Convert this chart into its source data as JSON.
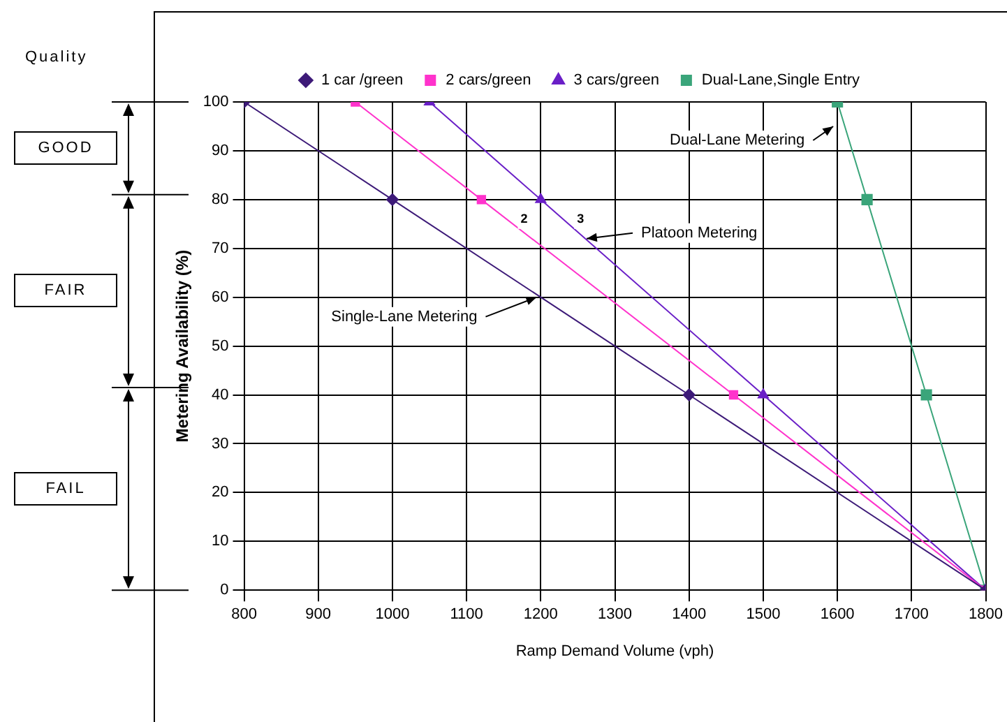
{
  "chart_data": {
    "type": "line",
    "xlabel": "Ramp Demand Volume (vph)",
    "ylabel": "Metering Availability (%)",
    "xlim": [
      800,
      1800
    ],
    "xticks": [
      800,
      900,
      1000,
      1100,
      1200,
      1300,
      1400,
      1500,
      1600,
      1700,
      1800
    ],
    "ylim": [
      0,
      100
    ],
    "yticks": [
      0,
      10,
      20,
      30,
      40,
      50,
      60,
      70,
      80,
      90,
      100
    ],
    "grid": true,
    "legend": "top",
    "line_style": "solid",
    "series": [
      {
        "name": "1 car /green",
        "color": "#3d1a78",
        "marker": "diamond",
        "x": [
          800,
          1000,
          1400,
          1800
        ],
        "values": [
          100,
          80,
          40,
          0
        ]
      },
      {
        "name": "2 cars/green",
        "color": "#ff33cc",
        "marker": "square",
        "x": [
          950,
          1120,
          1460,
          1800
        ],
        "values": [
          100,
          80,
          40,
          0
        ]
      },
      {
        "name": "3 cars/green",
        "color": "#6a1fc7",
        "marker": "triangle",
        "x": [
          1050,
          1200,
          1500,
          1800
        ],
        "values": [
          100,
          80,
          40,
          0
        ]
      },
      {
        "name": "Dual-Lane,Single Entry",
        "color": "#3aa57a",
        "marker": "square",
        "x": [
          1600,
          1640,
          1720,
          1800
        ],
        "values": [
          100,
          80,
          40,
          0
        ]
      }
    ],
    "annotations": [
      "Quality",
      "GOOD",
      "FAIR",
      "FAIL",
      {
        "text": "Dual-Lane Metering",
        "x": 1600,
        "y": 95
      },
      {
        "text": "2",
        "x": 1154,
        "y": 76
      },
      {
        "text": "3",
        "x": 1230,
        "y": 76
      },
      {
        "text": "Platoon Metering",
        "x": 1260,
        "y": 72
      },
      {
        "text": "Single-Lane Metering",
        "x": 1200,
        "y": 60
      }
    ]
  }
}
